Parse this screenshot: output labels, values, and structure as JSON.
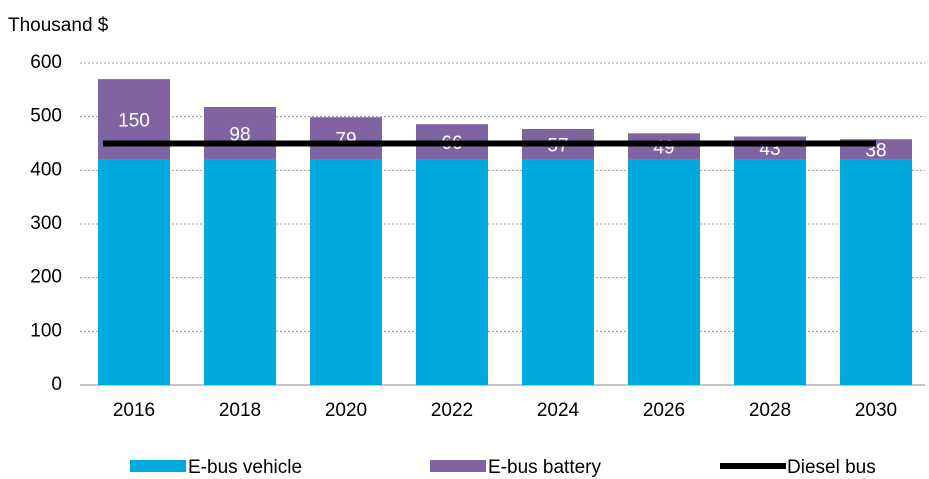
{
  "chart_data": {
    "type": "bar",
    "stacked": true,
    "axis_label": "Thousand $",
    "categories": [
      "2016",
      "2018",
      "2020",
      "2022",
      "2024",
      "2026",
      "2028",
      "2030"
    ],
    "series": [
      {
        "name": "E-bus vehicle",
        "color": "#00a9e0",
        "type": "bar",
        "values": [
          420,
          420,
          420,
          420,
          420,
          420,
          420,
          420
        ]
      },
      {
        "name": "E-bus battery",
        "color": "#8064a2",
        "type": "bar",
        "values": [
          150,
          98,
          79,
          66,
          57,
          49,
          43,
          38
        ]
      },
      {
        "name": "Diesel bus",
        "color": "#000000",
        "type": "line",
        "values": [
          450,
          450,
          450,
          450,
          450,
          450,
          450,
          450
        ]
      }
    ],
    "ylim": [
      0,
      600
    ],
    "yticks": [
      0,
      100,
      200,
      300,
      400,
      500,
      600
    ],
    "grid": true,
    "legend": "bottom"
  }
}
